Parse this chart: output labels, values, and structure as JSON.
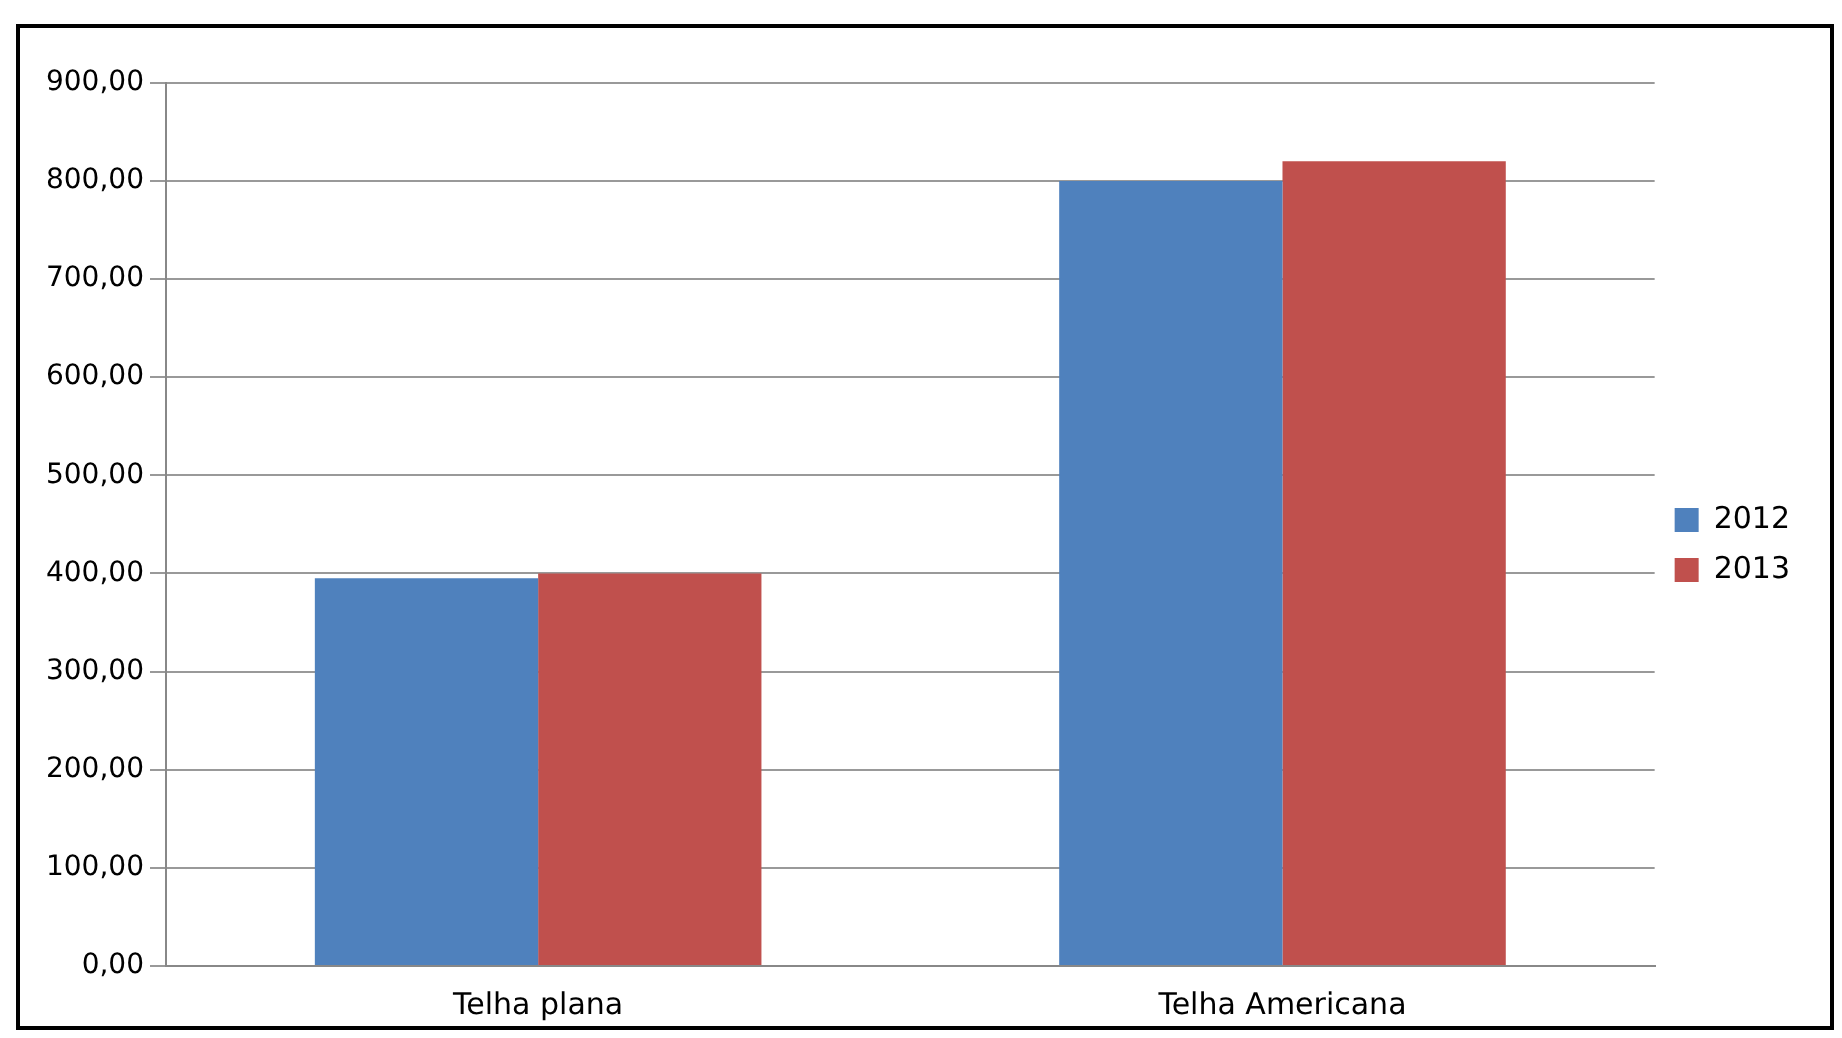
{
  "chart_data": {
    "type": "bar",
    "categories": [
      "Telha plana",
      "Telha Americana"
    ],
    "series": [
      {
        "name": "2012",
        "color": "#4f81bd",
        "values": [
          395,
          800
        ]
      },
      {
        "name": "2013",
        "color": "#c0504d",
        "values": [
          400,
          820
        ]
      }
    ],
    "ylim": [
      0,
      900
    ],
    "yticks": [
      {
        "value": 0,
        "label": "0,00"
      },
      {
        "value": 100,
        "label": "100,00"
      },
      {
        "value": 200,
        "label": "200,00"
      },
      {
        "value": 300,
        "label": "300,00"
      },
      {
        "value": 400,
        "label": "400,00"
      },
      {
        "value": 500,
        "label": "500,00"
      },
      {
        "value": 600,
        "label": "600,00"
      },
      {
        "value": 700,
        "label": "700,00"
      },
      {
        "value": 800,
        "label": "800,00"
      },
      {
        "value": 900,
        "label": "900,00"
      }
    ],
    "grid": "y",
    "legend": "right"
  }
}
